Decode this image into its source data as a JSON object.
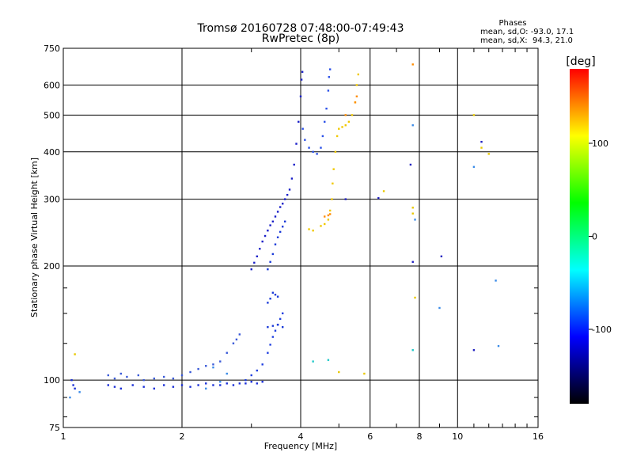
{
  "chart_data": {
    "type": "scatter",
    "title": "Tromsø 20160728 07:48:00-07:49:43",
    "subtitle": "RwPretec (8p)",
    "xlabel": "Frequency [MHz]",
    "ylabel": "Stationary phase Virtual Height [km]",
    "x_scale": "log",
    "y_scale": "log",
    "xlim": [
      1,
      16
    ],
    "ylim": [
      75,
      750
    ],
    "x_ticks": [
      1,
      2,
      4,
      6,
      8,
      10,
      16
    ],
    "y_ticks": [
      75,
      100,
      200,
      300,
      400,
      500,
      600,
      750
    ],
    "grid": true,
    "legend": {
      "heading": "Phases",
      "line1": "mean, sd,O: -93.0, 17.1",
      "line2": "mean, sd,X:  94.3, 21.0"
    },
    "colorbar": {
      "label": "[deg]",
      "ticks": [
        100,
        0,
        -100
      ],
      "range": [
        -180,
        180
      ],
      "colors": [
        "#ff0000",
        "#ffff00",
        "#00ff00",
        "#00ffff",
        "#0000ff",
        "#000000"
      ]
    },
    "series": [
      {
        "color": "#1a2fd8",
        "points": [
          [
            1.05,
            100
          ],
          [
            1.06,
            97
          ],
          [
            1.07,
            95
          ],
          [
            1.3,
            97
          ],
          [
            1.35,
            96
          ],
          [
            1.4,
            95
          ],
          [
            1.5,
            97
          ],
          [
            1.6,
            96
          ],
          [
            1.7,
            95
          ],
          [
            1.8,
            97
          ],
          [
            1.9,
            96
          ],
          [
            2.0,
            97
          ],
          [
            2.1,
            96
          ],
          [
            2.2,
            97
          ],
          [
            2.3,
            98
          ],
          [
            2.4,
            97
          ],
          [
            2.5,
            97
          ],
          [
            2.6,
            98
          ],
          [
            2.7,
            97
          ],
          [
            2.8,
            98
          ],
          [
            2.9,
            98
          ],
          [
            3.0,
            99
          ],
          [
            3.1,
            98
          ],
          [
            3.2,
            99
          ]
        ]
      },
      {
        "color": "#3a5ad8",
        "points": [
          [
            1.3,
            103
          ],
          [
            1.35,
            101
          ],
          [
            1.4,
            104
          ],
          [
            1.45,
            102
          ],
          [
            1.55,
            103
          ],
          [
            1.6,
            100
          ],
          [
            1.7,
            101
          ],
          [
            1.8,
            102
          ],
          [
            1.9,
            101
          ],
          [
            2.0,
            103
          ],
          [
            2.1,
            105
          ],
          [
            2.2,
            107
          ],
          [
            2.3,
            109
          ],
          [
            2.4,
            110
          ],
          [
            2.5,
            112
          ],
          [
            2.6,
            118
          ],
          [
            2.7,
            125
          ],
          [
            2.75,
            128
          ],
          [
            2.8,
            132
          ]
        ]
      },
      {
        "color": "#2040e0",
        "points": [
          [
            2.9,
            100
          ],
          [
            3.0,
            103
          ],
          [
            3.1,
            106
          ],
          [
            3.2,
            110
          ],
          [
            3.3,
            118
          ],
          [
            3.35,
            124
          ],
          [
            3.4,
            130
          ],
          [
            3.45,
            135
          ],
          [
            3.5,
            140
          ],
          [
            3.55,
            145
          ],
          [
            3.6,
            150
          ]
        ]
      },
      {
        "color": "#1a1fc8",
        "points": [
          [
            3.0,
            196
          ],
          [
            3.05,
            204
          ],
          [
            3.1,
            212
          ],
          [
            3.15,
            222
          ],
          [
            3.2,
            232
          ],
          [
            3.25,
            240
          ],
          [
            3.3,
            248
          ],
          [
            3.35,
            256
          ],
          [
            3.4,
            262
          ],
          [
            3.45,
            270
          ],
          [
            3.5,
            278
          ],
          [
            3.55,
            286
          ],
          [
            3.6,
            292
          ],
          [
            3.65,
            300
          ],
          [
            3.7,
            308
          ],
          [
            3.75,
            318
          ],
          [
            3.8,
            340
          ],
          [
            3.85,
            370
          ],
          [
            3.9,
            420
          ],
          [
            3.95,
            480
          ],
          [
            4.0,
            560
          ],
          [
            4.02,
            620
          ],
          [
            4.04,
            650
          ]
        ]
      },
      {
        "color": "#2a50e8",
        "points": [
          [
            4.05,
            460
          ],
          [
            4.1,
            430
          ],
          [
            4.2,
            410
          ],
          [
            4.3,
            400
          ],
          [
            4.4,
            395
          ],
          [
            4.5,
            410
          ],
          [
            4.55,
            440
          ],
          [
            4.6,
            480
          ],
          [
            4.65,
            520
          ],
          [
            4.7,
            580
          ],
          [
            4.72,
            630
          ],
          [
            4.75,
            660
          ]
        ]
      },
      {
        "color": "#1a3ad8",
        "points": [
          [
            3.3,
            196
          ],
          [
            3.35,
            205
          ],
          [
            3.4,
            215
          ],
          [
            3.45,
            228
          ],
          [
            3.5,
            238
          ],
          [
            3.55,
            246
          ],
          [
            3.6,
            254
          ],
          [
            3.65,
            262
          ],
          [
            3.4,
            170
          ],
          [
            3.45,
            168
          ],
          [
            3.5,
            166
          ],
          [
            3.3,
            160
          ],
          [
            3.35,
            164
          ],
          [
            3.5,
            140
          ],
          [
            3.3,
            138
          ],
          [
            3.4,
            139
          ],
          [
            3.6,
            138
          ]
        ]
      },
      {
        "color": "#f0c800",
        "points": [
          [
            4.5,
            255
          ],
          [
            4.6,
            258
          ],
          [
            4.7,
            265
          ],
          [
            4.75,
            280
          ],
          [
            4.8,
            300
          ],
          [
            4.82,
            330
          ],
          [
            4.85,
            360
          ],
          [
            4.9,
            400
          ],
          [
            4.95,
            440
          ],
          [
            5.0,
            460
          ],
          [
            5.1,
            465
          ],
          [
            5.2,
            470
          ],
          [
            5.3,
            480
          ],
          [
            5.4,
            500
          ],
          [
            5.5,
            540
          ],
          [
            5.55,
            600
          ],
          [
            5.6,
            640
          ],
          [
            4.3,
            248
          ],
          [
            4.2,
            250
          ]
        ]
      },
      {
        "color": "#ff8c00",
        "points": [
          [
            4.6,
            270
          ],
          [
            4.7,
            272
          ],
          [
            4.75,
            274
          ],
          [
            5.5,
            540
          ],
          [
            5.55,
            560
          ],
          [
            7.7,
            680
          ],
          [
            5.2,
            500
          ]
        ]
      },
      {
        "color": "#3a8be8",
        "points": [
          [
            1.04,
            90
          ],
          [
            1.1,
            93
          ],
          [
            2.3,
            95
          ],
          [
            2.5,
            99
          ],
          [
            2.6,
            104
          ],
          [
            2.4,
            108
          ],
          [
            7.7,
            470
          ],
          [
            7.8,
            265
          ],
          [
            12.5,
            183
          ],
          [
            12.7,
            123
          ],
          [
            9.0,
            155
          ],
          [
            11.0,
            365
          ]
        ]
      },
      {
        "color": "#2020c0",
        "points": [
          [
            11.0,
            120
          ],
          [
            11.5,
            425
          ],
          [
            7.7,
            205
          ],
          [
            9.1,
            212
          ],
          [
            7.6,
            370
          ],
          [
            5.2,
            300
          ],
          [
            6.3,
            302
          ]
        ]
      },
      {
        "color": "#e8c800",
        "points": [
          [
            1.07,
            117
          ],
          [
            5.8,
            104
          ],
          [
            6.5,
            315
          ],
          [
            7.7,
            285
          ],
          [
            7.7,
            275
          ],
          [
            11.0,
            500
          ],
          [
            11.5,
            410
          ],
          [
            12.0,
            395
          ],
          [
            7.8,
            165
          ],
          [
            5.0,
            105
          ]
        ]
      },
      {
        "color": "#20c8c8",
        "points": [
          [
            4.3,
            112
          ],
          [
            4.7,
            113
          ],
          [
            7.7,
            120
          ]
        ]
      }
    ]
  }
}
